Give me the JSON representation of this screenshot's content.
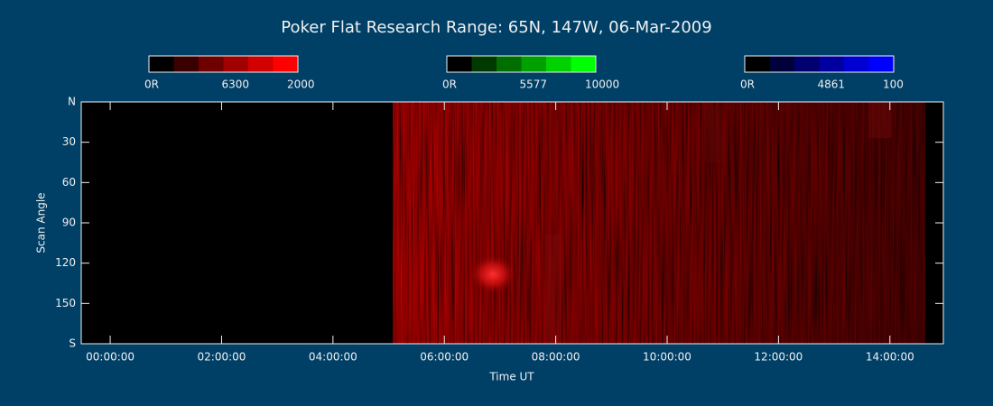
{
  "chart_data": {
    "type": "keogram",
    "title": "Poker Flat Research Range: 65N, 147W, 06-Mar-2009",
    "colorbars": [
      {
        "labels": [
          "0R",
          "6300",
          "2000"
        ],
        "colors": [
          "#000000",
          "#3a0000",
          "#6e0000",
          "#a00000",
          "#d20000",
          "#ff0000"
        ]
      },
      {
        "labels": [
          "0R",
          "5577",
          "10000"
        ],
        "colors": [
          "#000000",
          "#003a00",
          "#006e00",
          "#00a000",
          "#00d200",
          "#00ff00"
        ]
      },
      {
        "labels": [
          "0R",
          "4861",
          "100"
        ],
        "colors": [
          "#000000",
          "#00003a",
          "#00006e",
          "#0000a0",
          "#0000d2",
          "#0000ff"
        ]
      }
    ],
    "ylabel": "Scan Angle",
    "xlabel": "Time UT",
    "ylim": [
      0,
      180
    ],
    "yticks": [
      {
        "value": 0,
        "label": "N"
      },
      30,
      60,
      90,
      120,
      150,
      {
        "value": 180,
        "label": "S"
      }
    ],
    "xlim": [
      -0.52,
      14.96
    ],
    "xticks": [
      {
        "value": 0,
        "label": "00:00:00"
      },
      {
        "value": 2,
        "label": "02:00:00"
      },
      {
        "value": 4,
        "label": "04:00:00"
      },
      {
        "value": 6,
        "label": "06:00:00"
      },
      {
        "value": 8,
        "label": "08:00:00"
      },
      {
        "value": 10,
        "label": "10:00:00"
      },
      {
        "value": 12,
        "label": "12:00:00"
      },
      {
        "value": 14,
        "label": "14:00:00"
      }
    ]
  }
}
